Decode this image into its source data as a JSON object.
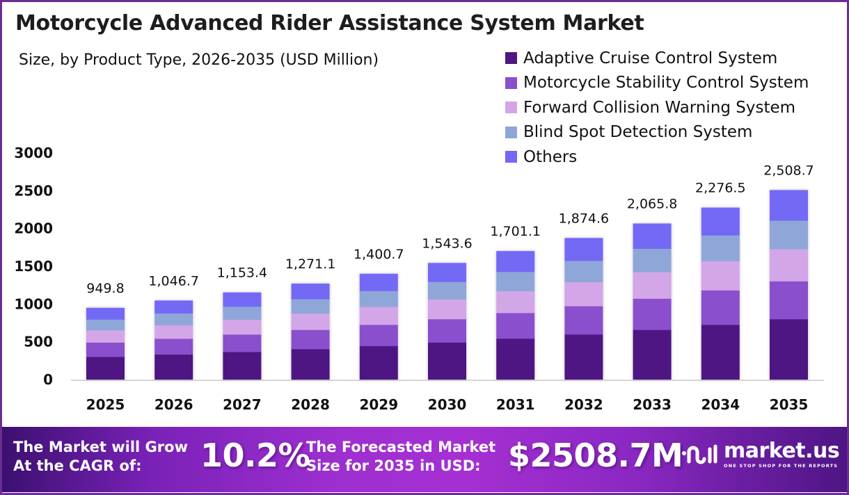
{
  "header": {
    "title": "Motorcycle  Advanced Rider Assistance System Market",
    "subtitle": "Size, by Product Type, 2026-2035 (USD Million)"
  },
  "legend": [
    {
      "label": "Adaptive Cruise Control System",
      "color": "#4e1683"
    },
    {
      "label": "Motorcycle Stability Control System",
      "color": "#8a4fcc"
    },
    {
      "label": "Forward Collision Warning System",
      "color": "#d3a6e8"
    },
    {
      "label": "Blind Spot Detection System",
      "color": "#8ea7d8"
    },
    {
      "label": "Others",
      "color": "#7369f5"
    }
  ],
  "chart_data": {
    "type": "bar",
    "stacked": true,
    "title": "Motorcycle  Advanced Rider Assistance System Market",
    "subtitle": "Size, by Product Type, 2026-2035 (USD Million)",
    "xlabel": "",
    "ylabel": "",
    "ylim": [
      0,
      3000
    ],
    "yticks": [
      0,
      500,
      1000,
      1500,
      2000,
      2500,
      3000
    ],
    "grid": false,
    "legend_position": "top-right",
    "categories": [
      "2025",
      "2026",
      "2027",
      "2028",
      "2029",
      "2030",
      "2031",
      "2032",
      "2033",
      "2034",
      "2035"
    ],
    "totals": [
      949.8,
      1046.7,
      1153.4,
      1271.1,
      1400.7,
      1543.6,
      1701.1,
      1874.6,
      2065.8,
      2276.5,
      2508.7
    ],
    "total_labels": [
      "949.8",
      "1,046.7",
      "1,153.4",
      "1,271.1",
      "1,400.7",
      "1,543.6",
      "1,701.1",
      "1,874.6",
      "2,065.8",
      "2,276.5",
      "2,508.7"
    ],
    "series": [
      {
        "name": "Adaptive Cruise Control System",
        "color": "#4e1683",
        "values": [
          303.9,
          335.0,
          369.1,
          406.8,
          448.2,
          494.0,
          544.4,
          599.9,
          661.1,
          728.5,
          802.8
        ]
      },
      {
        "name": "Motorcycle Stability Control System",
        "color": "#8a4fcc",
        "values": [
          190.0,
          209.3,
          230.7,
          254.2,
          280.1,
          308.7,
          340.2,
          374.9,
          413.2,
          455.3,
          501.7
        ]
      },
      {
        "name": "Forward Collision Warning System",
        "color": "#d3a6e8",
        "values": [
          161.5,
          177.9,
          196.1,
          216.1,
          238.1,
          262.4,
          289.2,
          318.7,
          351.2,
          387.0,
          426.5
        ]
      },
      {
        "name": "Blind Spot Detection System",
        "color": "#8ea7d8",
        "values": [
          142.5,
          157.0,
          173.0,
          190.7,
          210.1,
          231.5,
          255.2,
          281.2,
          309.9,
          341.5,
          376.3
        ]
      },
      {
        "name": "Others",
        "color": "#7369f5",
        "values": [
          151.9,
          167.5,
          184.5,
          203.3,
          224.2,
          247.0,
          272.1,
          299.9,
          330.4,
          364.2,
          401.4
        ]
      }
    ]
  },
  "footer": {
    "cagr_text_line1": "The Market will Grow",
    "cagr_text_line2": "At the CAGR of:",
    "cagr_value": "10.2%",
    "forecast_text_line1": "The Forecasted Market",
    "forecast_text_line2": "Size for 2035 in USD:",
    "forecast_value": "$2508.7M",
    "brand_name": "market.us",
    "brand_tagline": "ONE STOP SHOP FOR THE REPORTS"
  }
}
